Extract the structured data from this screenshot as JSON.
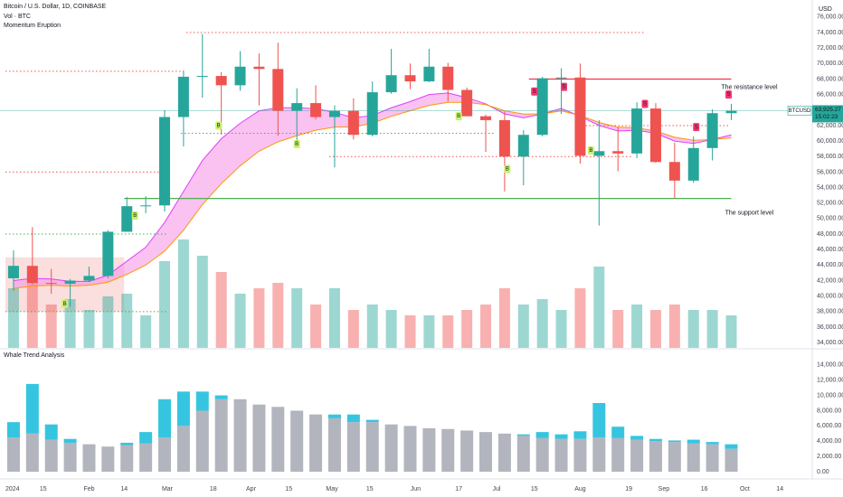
{
  "chart_data": {
    "type": "candlestick",
    "title": "Bitcoin / U.S. Dollar, 1D, COINBASE",
    "indicators": [
      "Vol · BTC",
      "Momentum Eruption"
    ],
    "currency": "USD",
    "symbol": "BTCUSD",
    "price_label": {
      "value": 63925.27,
      "label": "63,925.27"
    },
    "countdown": "15:02:23",
    "x": [
      "2024-01-01",
      "2024-01-08",
      "2024-01-15",
      "2024-01-22",
      "2024-01-29",
      "2024-02-05",
      "2024-02-12",
      "2024-02-19",
      "2024-02-26",
      "2024-03-04",
      "2024-03-11",
      "2024-03-18",
      "2024-03-25",
      "2024-04-01",
      "2024-04-08",
      "2024-04-15",
      "2024-04-22",
      "2024-04-29",
      "2024-05-06",
      "2024-05-13",
      "2024-05-20",
      "2024-05-27",
      "2024-06-03",
      "2024-06-10",
      "2024-06-17",
      "2024-06-24",
      "2024-07-01",
      "2024-07-08",
      "2024-07-15",
      "2024-07-22",
      "2024-07-29",
      "2024-08-05",
      "2024-08-12",
      "2024-08-19",
      "2024-08-26",
      "2024-09-02",
      "2024-09-09",
      "2024-09-16",
      "2024-09-23"
    ],
    "open": [
      42300,
      43900,
      41700,
      41600,
      42000,
      42600,
      48300,
      51600,
      51700,
      63100,
      68300,
      68400,
      67200,
      69600,
      69300,
      63900,
      64900,
      63100,
      63900,
      60800,
      66300,
      68500,
      67700,
      69600,
      66600,
      63200,
      62700,
      58000,
      60800,
      68100,
      68200,
      58100,
      58700,
      58400,
      64200,
      57300,
      54900,
      59100,
      63600
    ],
    "high": [
      45900,
      48900,
      43500,
      42200,
      43800,
      48500,
      52800,
      52900,
      64000,
      69000,
      73800,
      68900,
      71600,
      71300,
      72700,
      66800,
      67200,
      64600,
      65500,
      67700,
      71900,
      70000,
      71900,
      70100,
      66900,
      63400,
      63800,
      61400,
      68300,
      69400,
      70000,
      62700,
      61800,
      65000,
      64900,
      59800,
      60600,
      64100,
      64800
    ],
    "low": [
      40700,
      41500,
      40300,
      38600,
      41800,
      42300,
      48300,
      50700,
      50900,
      59300,
      65600,
      60800,
      66500,
      64600,
      60700,
      59700,
      62800,
      56600,
      60200,
      60600,
      66100,
      66700,
      67600,
      65100,
      63400,
      58600,
      53500,
      54300,
      60600,
      63500,
      57100,
      49100,
      56100,
      57800,
      57200,
      52600,
      54600,
      57500,
      62700
    ],
    "close": [
      43900,
      41700,
      41600,
      42000,
      42600,
      48300,
      51600,
      51700,
      63100,
      68300,
      68400,
      67200,
      69600,
      69300,
      63900,
      64900,
      63100,
      63900,
      60800,
      66300,
      68500,
      67700,
      69600,
      66600,
      63200,
      62700,
      58000,
      60800,
      68100,
      68200,
      58100,
      58700,
      58400,
      64200,
      57300,
      54900,
      59100,
      63600,
      63900
    ],
    "volume": [
      110000,
      120000,
      80000,
      90000,
      70000,
      95000,
      100000,
      60000,
      160000,
      200000,
      170000,
      140000,
      100000,
      110000,
      120000,
      110000,
      80000,
      110000,
      70000,
      80000,
      70000,
      60000,
      60000,
      60000,
      70000,
      80000,
      110000,
      80000,
      90000,
      70000,
      110000,
      150000,
      70000,
      80000,
      70000,
      80000,
      70000,
      70000,
      60000
    ],
    "up_color": "#26a69a",
    "down_color": "#ef5350",
    "lines": [
      {
        "color": "#e040fb",
        "values": [
          42000,
          42300,
          42200,
          41900,
          41900,
          42700,
          44500,
          46300,
          49500,
          53500,
          57500,
          60300,
          62300,
          63900,
          64300,
          64300,
          64200,
          63700,
          63000,
          63300,
          64300,
          65100,
          66000,
          66200,
          65600,
          64800,
          63500,
          63000,
          63500,
          64200,
          63200,
          62000,
          61300,
          61400,
          61000,
          60000,
          59700,
          60200,
          60800
        ]
      },
      {
        "color": "#ff9800",
        "values": [
          41000,
          41300,
          41400,
          41300,
          41400,
          41800,
          42800,
          44000,
          45800,
          48500,
          51800,
          54500,
          56800,
          58700,
          59900,
          60700,
          61400,
          61800,
          61800,
          62300,
          63200,
          63900,
          64600,
          65000,
          65000,
          64700,
          63900,
          63500,
          63500,
          63900,
          63300,
          62400,
          61800,
          61700,
          61300,
          60500,
          60100,
          60200,
          60400
        ]
      }
    ],
    "band_color": "#f48fe6",
    "zone": {
      "start": "2024-01-01",
      "end": "2024-02-14",
      "low": 38000,
      "high": 45000,
      "color": "#f8c8c8"
    },
    "levels": [
      {
        "value": 74000,
        "start": "2024-03-08",
        "end": "2024-08-25",
        "color": "#ef5350",
        "style": "dotted"
      },
      {
        "value": 69000,
        "start": "2024-01-01",
        "end": "2024-03-08",
        "color": "#ef5350",
        "style": "dotted"
      },
      {
        "value": 56000,
        "start": "2024-01-01",
        "end": "2024-03-01",
        "color": "#ef5350",
        "style": "dotted"
      },
      {
        "value": 48000,
        "start": "2024-01-01",
        "end": "2024-03-01",
        "color": "#4caf50",
        "style": "dotted"
      },
      {
        "value": 38000,
        "start": "2024-01-01",
        "end": "2024-03-01",
        "color": "#4caf50",
        "style": "dotted"
      },
      {
        "value": 61000,
        "start": "2024-03-06",
        "end": "2024-06-30",
        "color": "#4caf50",
        "style": "dotted"
      },
      {
        "value": 58000,
        "start": "2024-04-30",
        "end": "2024-08-20",
        "color": "#ef5350",
        "style": "dotted"
      },
      {
        "value": 62000,
        "start": "2024-07-30",
        "end": "2024-09-25",
        "color": "#ef5350",
        "style": "dotted"
      },
      {
        "value": 68000,
        "start": "2024-07-13",
        "end": "2024-09-26",
        "color": "#f23645",
        "style": "solid",
        "label": "The resistance level"
      },
      {
        "value": 52600,
        "start": "2024-02-14",
        "end": "2024-09-26",
        "color": "#4caf50",
        "style": "solid",
        "label": "The support level"
      }
    ],
    "signals": [
      {
        "date": "2024-01-23",
        "price": 39000,
        "label": "B"
      },
      {
        "date": "2024-02-18",
        "price": 50400,
        "label": "B"
      },
      {
        "date": "2024-03-20",
        "price": 62000,
        "label": "B"
      },
      {
        "date": "2024-04-18",
        "price": 59600,
        "label": "B"
      },
      {
        "date": "2024-06-17",
        "price": 63200,
        "label": "B"
      },
      {
        "date": "2024-07-05",
        "price": 56400,
        "label": "B"
      },
      {
        "date": "2024-08-05",
        "price": 58800,
        "label": "B"
      },
      {
        "date": "2024-07-15",
        "price": 66400,
        "label": "S"
      },
      {
        "date": "2024-07-26",
        "price": 67000,
        "label": "S"
      },
      {
        "date": "2024-08-25",
        "price": 64800,
        "label": "S"
      },
      {
        "date": "2024-09-13",
        "price": 61800,
        "label": "S"
      },
      {
        "date": "2024-09-25",
        "price": 66000,
        "label": "S"
      }
    ],
    "xlim": [
      "2024-01-01",
      "2024-10-26"
    ],
    "xticks": [
      {
        "value": "2024-01-01",
        "label": "2024"
      },
      {
        "value": "2024-01-15",
        "label": "15"
      },
      {
        "value": "2024-02-01",
        "label": "Feb"
      },
      {
        "value": "2024-02-14",
        "label": "14"
      },
      {
        "value": "2024-03-01",
        "label": "Mar"
      },
      {
        "value": "2024-03-18",
        "label": "18"
      },
      {
        "value": "2024-04-01",
        "label": "Apr"
      },
      {
        "value": "2024-04-15",
        "label": "15"
      },
      {
        "value": "2024-05-01",
        "label": "May"
      },
      {
        "value": "2024-05-15",
        "label": "15"
      },
      {
        "value": "2024-06-01",
        "label": "Jun"
      },
      {
        "value": "2024-06-17",
        "label": "17"
      },
      {
        "value": "2024-07-01",
        "label": "Jul"
      },
      {
        "value": "2024-07-15",
        "label": "15"
      },
      {
        "value": "2024-08-01",
        "label": "Aug"
      },
      {
        "value": "2024-08-19",
        "label": "19"
      },
      {
        "value": "2024-09-01",
        "label": "Sep"
      },
      {
        "value": "2024-09-16",
        "label": "16"
      },
      {
        "value": "2024-10-01",
        "label": "Oct"
      },
      {
        "value": "2024-10-14",
        "label": "14"
      }
    ],
    "ylim": [
      33200,
      78200
    ],
    "yticks": [
      {
        "value": 34000,
        "label": "34,000.00"
      },
      {
        "value": 36000,
        "label": "36,000.00"
      },
      {
        "value": 38000,
        "label": "38,000.00"
      },
      {
        "value": 40000,
        "label": "40,000.00"
      },
      {
        "value": 42000,
        "label": "42,000.00"
      },
      {
        "value": 44000,
        "label": "44,000.00"
      },
      {
        "value": 46000,
        "label": "46,000.00"
      },
      {
        "value": 48000,
        "label": "48,000.00"
      },
      {
        "value": 50000,
        "label": "50,000.00"
      },
      {
        "value": 52000,
        "label": "52,000.00"
      },
      {
        "value": 54000,
        "label": "54,000.00"
      },
      {
        "value": 56000,
        "label": "56,000.00"
      },
      {
        "value": 58000,
        "label": "58,000.00"
      },
      {
        "value": 60000,
        "label": "60,000.00"
      },
      {
        "value": 62000,
        "label": "62,000.00"
      },
      {
        "value": 66000,
        "label": "66,000.00"
      },
      {
        "value": 68000,
        "label": "68,000.00"
      },
      {
        "value": 70000,
        "label": "70,000.00"
      },
      {
        "value": 72000,
        "label": "72,000.00"
      },
      {
        "value": 74000,
        "label": "74,000.00"
      },
      {
        "value": 76000,
        "label": "76,000.00"
      }
    ],
    "lower": {
      "type": "bar",
      "title": "Whale Trend Analysis",
      "series": [
        {
          "color": "#b2b5be",
          "values": [
            4500,
            5000,
            4200,
            3800,
            3600,
            3300,
            3500,
            3700,
            4500,
            6000,
            8000,
            9500,
            9500,
            8800,
            8500,
            8000,
            7500,
            7000,
            6500,
            6500,
            6200,
            6000,
            5700,
            5600,
            5400,
            5200,
            5000,
            4700,
            4400,
            4300,
            4300,
            4500,
            4400,
            4200,
            4000,
            3900,
            3700,
            3600,
            3000
          ]
        },
        {
          "color": "#36c5e0",
          "values": [
            2000,
            6500,
            2000,
            500,
            0,
            0,
            300,
            1500,
            5000,
            4500,
            2500,
            500,
            0,
            0,
            0,
            0,
            0,
            500,
            1000,
            300,
            0,
            0,
            0,
            0,
            0,
            0,
            0,
            200,
            800,
            600,
            1000,
            4500,
            1500,
            500,
            300,
            200,
            500,
            300,
            600
          ]
        }
      ],
      "ylim": [
        -700,
        16100
      ],
      "yticks": [
        {
          "value": 0,
          "label": "0.00"
        },
        {
          "value": 2000,
          "label": "2,000.00"
        },
        {
          "value": 4000,
          "label": "4,000.00"
        },
        {
          "value": 6000,
          "label": "6,000.00"
        },
        {
          "value": 8000,
          "label": "8,000.00"
        },
        {
          "value": 10000,
          "label": "10,000.00"
        },
        {
          "value": 12000,
          "label": "12,000.00"
        },
        {
          "value": 14000,
          "label": "14,000.00"
        }
      ]
    }
  }
}
